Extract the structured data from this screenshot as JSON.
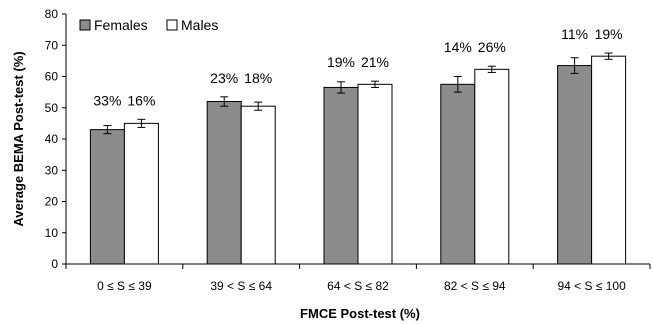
{
  "chart_data": {
    "type": "bar",
    "categories": [
      "0 ≤ S ≤ 39",
      "39 < S ≤ 64",
      "64 < S ≤ 82",
      "82 < S ≤ 94",
      "94 < S ≤ 100"
    ],
    "xlabel": "FMCE Post-test (%)",
    "ylabel": "Average BEMA Post-test (%)",
    "ylim": [
      0,
      80
    ],
    "yticks": [
      "0",
      "10",
      "20",
      "30",
      "40",
      "50",
      "60",
      "70",
      "80"
    ],
    "legend_position": "top-left",
    "series": [
      {
        "name": "Females",
        "color": "#8c8c8c",
        "values": [
          43,
          52,
          56.5,
          57.5,
          63.5
        ],
        "errors": [
          1.3,
          1.5,
          1.8,
          2.5,
          2.5
        ],
        "labels": [
          "33%",
          "23%",
          "19%",
          "14%",
          "11%"
        ]
      },
      {
        "name": "Males",
        "color": "#ffffff",
        "values": [
          45,
          50.5,
          57.5,
          62.3,
          66.5
        ],
        "errors": [
          1.3,
          1.3,
          1.0,
          1.0,
          1.0
        ],
        "labels": [
          "16%",
          "18%",
          "21%",
          "26%",
          "19%"
        ]
      }
    ]
  }
}
